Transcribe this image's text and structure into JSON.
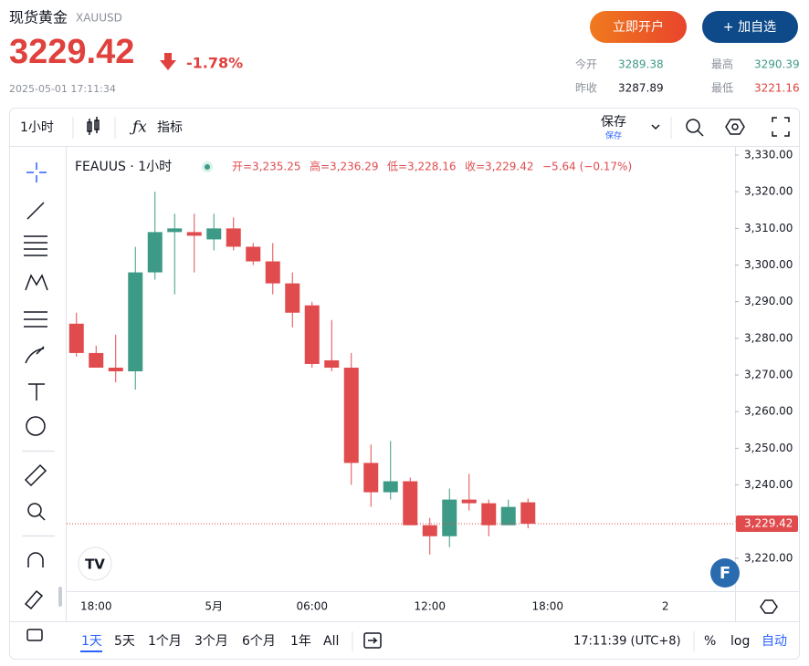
{
  "header": {
    "title": "现货黄金",
    "symbol": "XAUUSD",
    "price": "3229.42",
    "change": "-1.78%",
    "datetime": "2025-05-01 17:11:34",
    "buttons": [
      "立即开户",
      "+ 加自选"
    ],
    "stats": [
      {
        "label": "今开",
        "value": "3289.38"
      },
      {
        "label": "最高",
        "value": "3290.39"
      },
      {
        "label": "昨收",
        "value": "3287.89"
      },
      {
        "label": "最低",
        "value": "3221.16"
      }
    ]
  },
  "toolbar": {
    "interval": "1小时",
    "indicators": "指标",
    "save": "保存",
    "save_sub": "保存"
  },
  "chart_data": {
    "type": "candlestick",
    "title": "FEAUUS · 1小时",
    "legend_values": [
      "开=3,235.25",
      "高=3,236.29",
      "低=3,228.16",
      "收=3,229.42",
      "−5.64 (−0.17%)"
    ],
    "categories": [
      null,
      "18:00",
      null,
      null,
      null,
      null,
      null,
      "5月",
      null,
      null,
      null,
      null,
      "06:00",
      null,
      null,
      null,
      null,
      null,
      "12:00",
      null,
      null,
      null,
      null,
      null,
      "18:00",
      null,
      null,
      null,
      null,
      null,
      "2",
      null,
      null,
      null
    ],
    "open": [
      3284,
      3276,
      3272,
      3271,
      3298,
      3309,
      3309,
      3307,
      3310,
      3305,
      3301,
      3295,
      3289,
      3274,
      3272,
      3246,
      3238,
      3241,
      3229,
      3226,
      3236,
      3235,
      3229,
      3235.25,
      null,
      null,
      null,
      null,
      null,
      null,
      null,
      null,
      null,
      null
    ],
    "high": [
      3287,
      3278,
      3281,
      3305,
      3320,
      3314,
      3314,
      3314,
      3313,
      3306,
      3306,
      3298,
      3290,
      3285,
      3276,
      3251,
      3252,
      3242,
      3231,
      3239,
      3243,
      3236,
      3236,
      3236.29,
      null,
      null,
      null,
      null,
      null,
      null,
      null,
      null,
      null,
      null
    ],
    "low": [
      3275,
      3272,
      3268,
      3266,
      3296,
      3292,
      3298,
      3304,
      3304,
      3300,
      3292,
      3283,
      3272,
      3271,
      3240,
      3234,
      3236,
      3229,
      3221,
      3223,
      3233,
      3226,
      3229,
      3228.16,
      null,
      null,
      null,
      null,
      null,
      null,
      null,
      null,
      null,
      null
    ],
    "close": [
      3276,
      3272,
      3271,
      3298,
      3309,
      3310,
      3308,
      3310,
      3305,
      3301,
      3295,
      3287,
      3273,
      3272,
      3246,
      3238,
      3241,
      3229,
      3226,
      3236,
      3235,
      3229,
      3234,
      3229.42,
      null,
      null,
      null,
      null,
      null,
      null,
      null,
      null,
      null,
      null
    ],
    "up_color": "#3d9a86",
    "down_color": "#e04b4e",
    "ylim": [
      3211,
      3332
    ],
    "yticks": [
      {
        "value": 3220,
        "label": "3,220.00"
      },
      {
        "value": 3230,
        "label": "3,230.00"
      },
      {
        "value": 3240,
        "label": "3,240.00"
      },
      {
        "value": 3250,
        "label": "3,250.00"
      },
      {
        "value": 3260,
        "label": "3,260.00"
      },
      {
        "value": 3270,
        "label": "3,270.00"
      },
      {
        "value": 3280,
        "label": "3,280.00"
      },
      {
        "value": 3290,
        "label": "3,290.00"
      },
      {
        "value": 3300,
        "label": "3,300.00"
      },
      {
        "value": 3310,
        "label": "3,310.00"
      },
      {
        "value": 3320,
        "label": "3,320.00"
      },
      {
        "value": 3330,
        "label": "3,330.00"
      }
    ],
    "grid": false,
    "last_price": {
      "value": 3229.42,
      "label": "3,229.42"
    }
  },
  "bottom_bar": {
    "ranges": [
      "1天",
      "5天",
      "1个月",
      "3个月",
      "6个月",
      "1年",
      "All"
    ],
    "time": "17:11:39 (UTC+8)",
    "percent": "%",
    "log": "log",
    "auto": "自动"
  }
}
